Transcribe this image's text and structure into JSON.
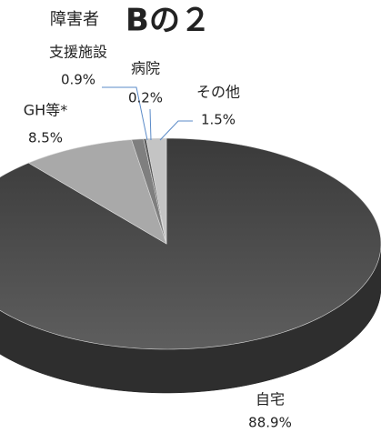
{
  "chart_data": {
    "type": "pie",
    "title": [
      "障害者",
      "Bの２"
    ],
    "categories": [
      "自宅",
      "GH等*",
      "支援施設",
      "病院",
      "その他"
    ],
    "values": [
      88.9,
      8.5,
      0.9,
      0.2,
      1.5
    ],
    "value_labels": [
      "88.9%",
      "8.5%",
      "0.9%",
      "0.2%",
      "1.5%"
    ],
    "colors": [
      "#4d4d4d",
      "#a9a9a9",
      "#7f7f7f",
      "#5a5a5a",
      "#c4c4c4"
    ]
  }
}
